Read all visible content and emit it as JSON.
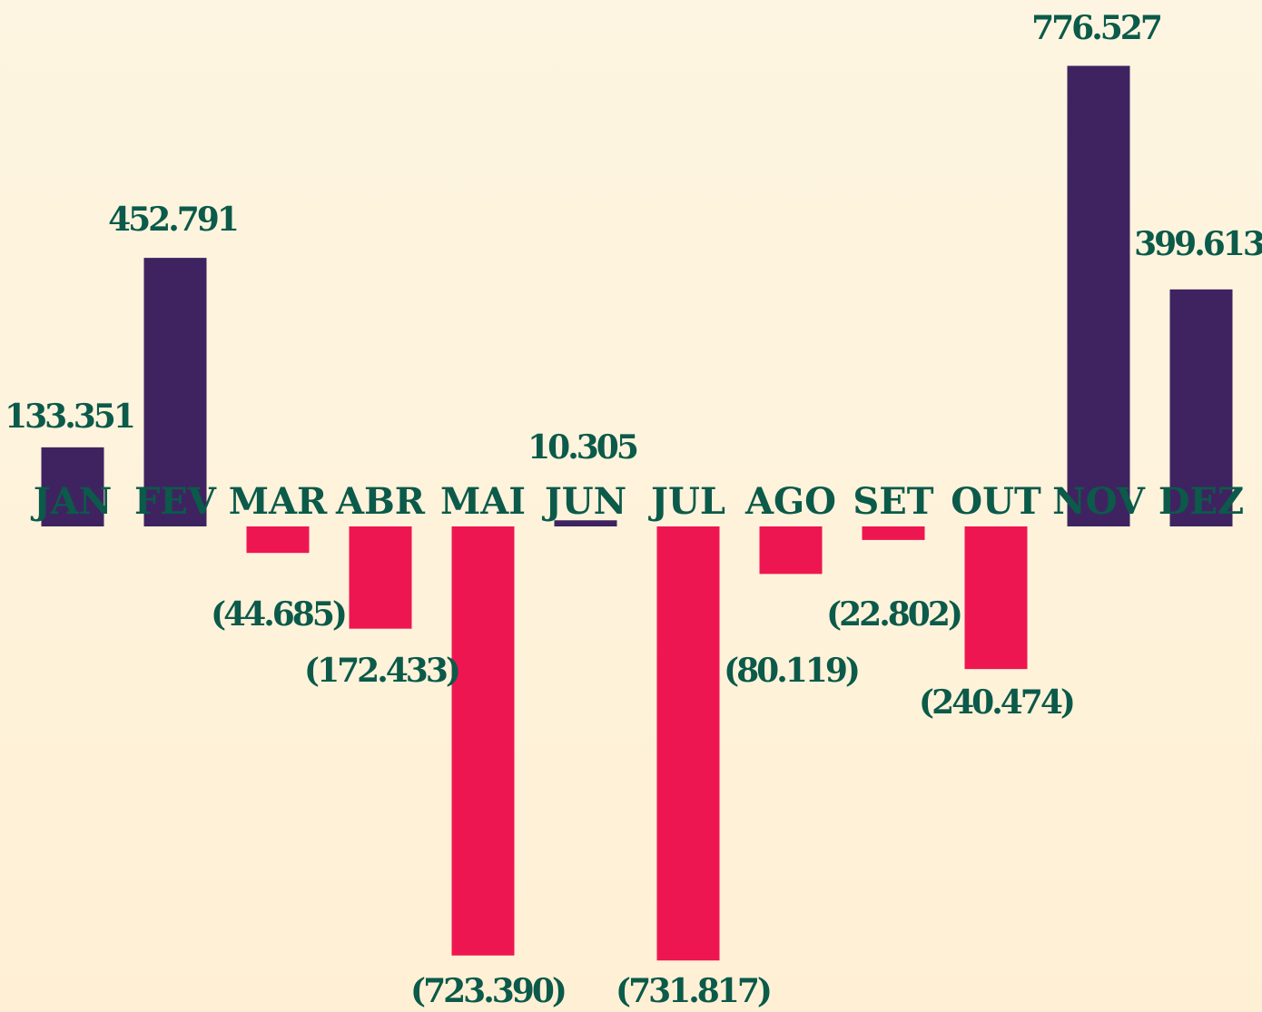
{
  "chart_data": {
    "type": "bar",
    "categories": [
      "JAN",
      "FEV",
      "MAR",
      "ABR",
      "MAI",
      "JUN",
      "JUL",
      "AGO",
      "SET",
      "OUT",
      "NOV",
      "DEZ"
    ],
    "values": [
      133.351,
      452.791,
      -44.685,
      -172.433,
      -723.39,
      10.305,
      -731.817,
      -80.119,
      -22.802,
      -240.474,
      776.527,
      399.613
    ],
    "value_labels": [
      "133.351",
      "452.791",
      "(44.685)",
      "(172.433)",
      "(723.390)",
      "10.305",
      "(731.817)",
      "(80.119)",
      "(22.802)",
      "(240.474)",
      "776.527",
      "399.613"
    ],
    "colors": {
      "positive": "#3f2360",
      "negative": "#ee1651"
    }
  }
}
